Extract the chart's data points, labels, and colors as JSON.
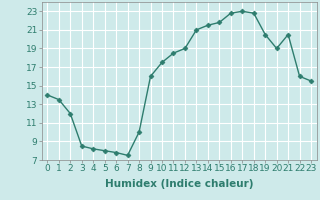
{
  "x": [
    0,
    1,
    2,
    3,
    4,
    5,
    6,
    7,
    8,
    9,
    10,
    11,
    12,
    13,
    14,
    15,
    16,
    17,
    18,
    19,
    20,
    21,
    22,
    23
  ],
  "y": [
    14.0,
    13.5,
    12.0,
    8.5,
    8.2,
    8.0,
    7.8,
    7.5,
    10.0,
    16.0,
    17.5,
    18.5,
    19.0,
    21.0,
    21.5,
    21.8,
    22.8,
    23.0,
    22.8,
    20.5,
    19.0,
    20.5,
    16.0,
    15.5
  ],
  "xlabel": "Humidex (Indice chaleur)",
  "ylim": [
    7,
    24
  ],
  "xlim": [
    -0.5,
    23.5
  ],
  "yticks": [
    7,
    9,
    11,
    13,
    15,
    17,
    19,
    21,
    23
  ],
  "xticks": [
    0,
    1,
    2,
    3,
    4,
    5,
    6,
    7,
    8,
    9,
    10,
    11,
    12,
    13,
    14,
    15,
    16,
    17,
    18,
    19,
    20,
    21,
    22,
    23
  ],
  "line_color": "#2e7d6e",
  "marker": "D",
  "marker_size": 2.5,
  "bg_color": "#ceeaea",
  "grid_color": "#ffffff",
  "tick_fontsize": 6.5,
  "xlabel_fontsize": 7.5
}
